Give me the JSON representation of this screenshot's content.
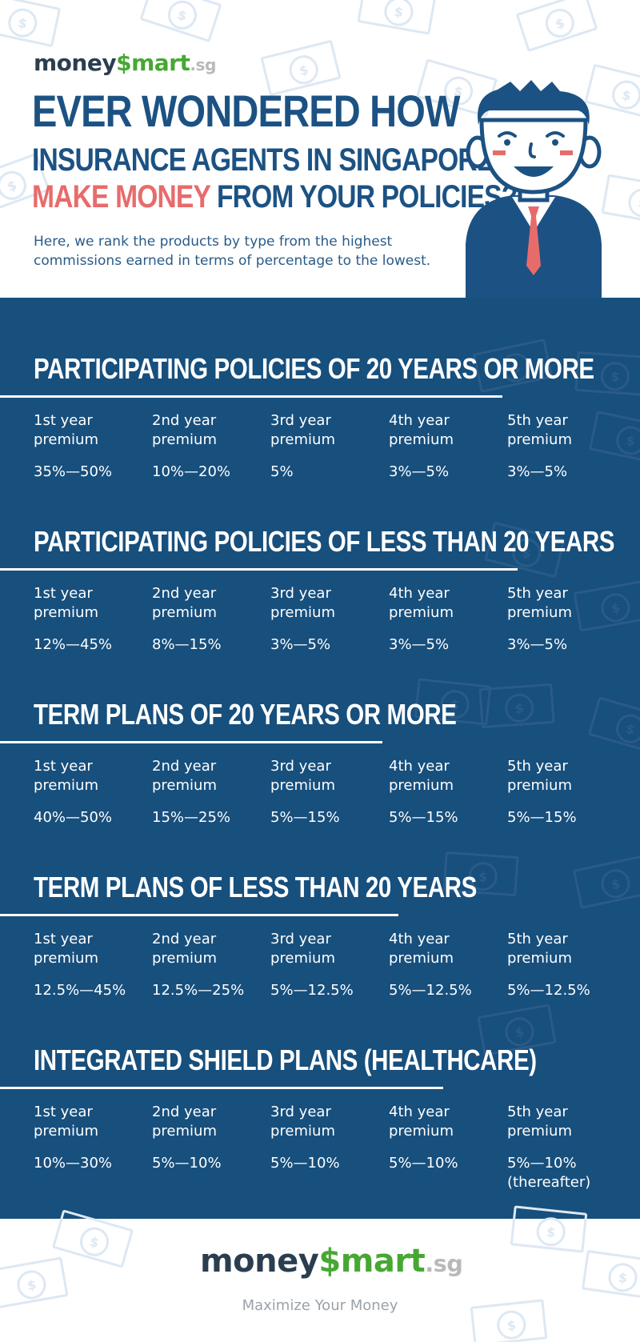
{
  "logo": {
    "money": "money",
    "dollar": "$",
    "mart": "mart",
    "sg": ".sg"
  },
  "headline": {
    "line1": "EVER WONDERED HOW",
    "line2": "INSURANCE AGENTS IN SINGAPORE",
    "line3_highlight": "MAKE MONEY",
    "line3_rest": " FROM YOUR POLICIES?"
  },
  "intro": "Here, we rank the products by type from the highest commissions earned in terms of percentage to the lowest.",
  "colors": {
    "navy": "#174f7d",
    "accent_red": "#e86b6b",
    "brand_green": "#46a833"
  },
  "sections": [
    {
      "title": "PARTICIPATING POLICIES OF 20 YEARS OR MORE",
      "columns": [
        {
          "label": "1st year\npremium",
          "value": "35%—50%"
        },
        {
          "label": "2nd year\npremium",
          "value": "10%—20%"
        },
        {
          "label": "3rd year\npremium",
          "value": "5%"
        },
        {
          "label": "4th year\npremium",
          "value": "3%—5%"
        },
        {
          "label": "5th year\npremium",
          "value": "3%—5%"
        }
      ]
    },
    {
      "title": "PARTICIPATING POLICIES OF LESS THAN 20 YEARS",
      "columns": [
        {
          "label": "1st year\npremium",
          "value": "12%—45%"
        },
        {
          "label": "2nd year\npremium",
          "value": "8%—15%"
        },
        {
          "label": "3rd year\npremium",
          "value": "3%—5%"
        },
        {
          "label": "4th year\npremium",
          "value": "3%—5%"
        },
        {
          "label": "5th year\npremium",
          "value": "3%—5%"
        }
      ]
    },
    {
      "title": "TERM PLANS OF 20 YEARS OR MORE",
      "columns": [
        {
          "label": "1st year\npremium",
          "value": "40%—50%"
        },
        {
          "label": "2nd year\npremium",
          "value": "15%—25%"
        },
        {
          "label": "3rd year\npremium",
          "value": "5%—15%"
        },
        {
          "label": "4th year\npremium",
          "value": "5%—15%"
        },
        {
          "label": "5th year\npremium",
          "value": "5%—15%"
        }
      ]
    },
    {
      "title": "TERM PLANS OF LESS THAN 20 YEARS",
      "columns": [
        {
          "label": "1st year\npremium",
          "value": "12.5%—45%"
        },
        {
          "label": "2nd year\npremium",
          "value": "12.5%—25%"
        },
        {
          "label": "3rd year\npremium",
          "value": "5%—12.5%"
        },
        {
          "label": "4th year\npremium",
          "value": "5%—12.5%"
        },
        {
          "label": "5th year\npremium",
          "value": "5%—12.5%"
        }
      ]
    },
    {
      "title": "INTEGRATED SHIELD PLANS (HEALTHCARE)",
      "columns": [
        {
          "label": "1st year\npremium",
          "value": "10%—30%"
        },
        {
          "label": "2nd year\npremium",
          "value": "5%—10%"
        },
        {
          "label": "3rd year\npremium",
          "value": "5%—10%"
        },
        {
          "label": "4th year\npremium",
          "value": "5%—10%"
        },
        {
          "label": "5th year\npremium",
          "value": "5%—10%\n(thereafter)"
        }
      ]
    }
  ],
  "footer": {
    "tagline": "Maximize Your Money"
  }
}
